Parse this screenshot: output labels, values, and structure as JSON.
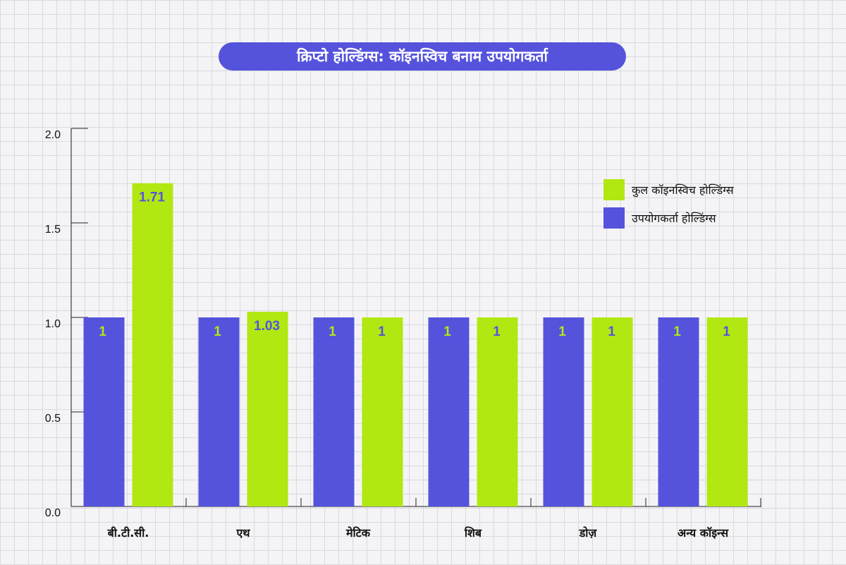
{
  "colors": {
    "user": "#5553dc",
    "total": "#b1e812",
    "axis": "#222222",
    "label_on_user": "#b1e812",
    "label_on_total": "#5553dc"
  },
  "chart_data": {
    "type": "bar",
    "title": "क्रिप्टो होल्डिंग्स: कॉइनस्विच बनाम उपयोगकर्ता",
    "categories": [
      "बी.टी.सी.",
      "एथ",
      "मेटिक",
      "शिब",
      "डोज़",
      "अन्य कॉइन्स"
    ],
    "series": [
      {
        "name": "उपयोगकर्ता होल्डिंग्स",
        "values": [
          1,
          1,
          1,
          1,
          1,
          1
        ]
      },
      {
        "name": "कुल कॉइनस्विच होल्डिंग्स",
        "values": [
          1.71,
          1.03,
          1,
          1,
          1,
          1
        ]
      }
    ],
    "value_labels": [
      [
        "1",
        "1",
        "1",
        "1",
        "1",
        "1"
      ],
      [
        "1.71",
        "1.03",
        "1",
        "1",
        "1",
        "1"
      ]
    ],
    "ylim": [
      0,
      2
    ],
    "yticks": [
      "0.0",
      "0.5",
      "1.0",
      "1.5",
      "2.0"
    ],
    "legend_position": "top-right",
    "grid": false
  },
  "legend": {
    "items": [
      {
        "label": "कुल कॉइनस्विच होल्डिंग्स",
        "color": "#b1e812"
      },
      {
        "label": "उपयोगकर्ता होल्डिंग्स",
        "color": "#5553dc"
      }
    ]
  }
}
